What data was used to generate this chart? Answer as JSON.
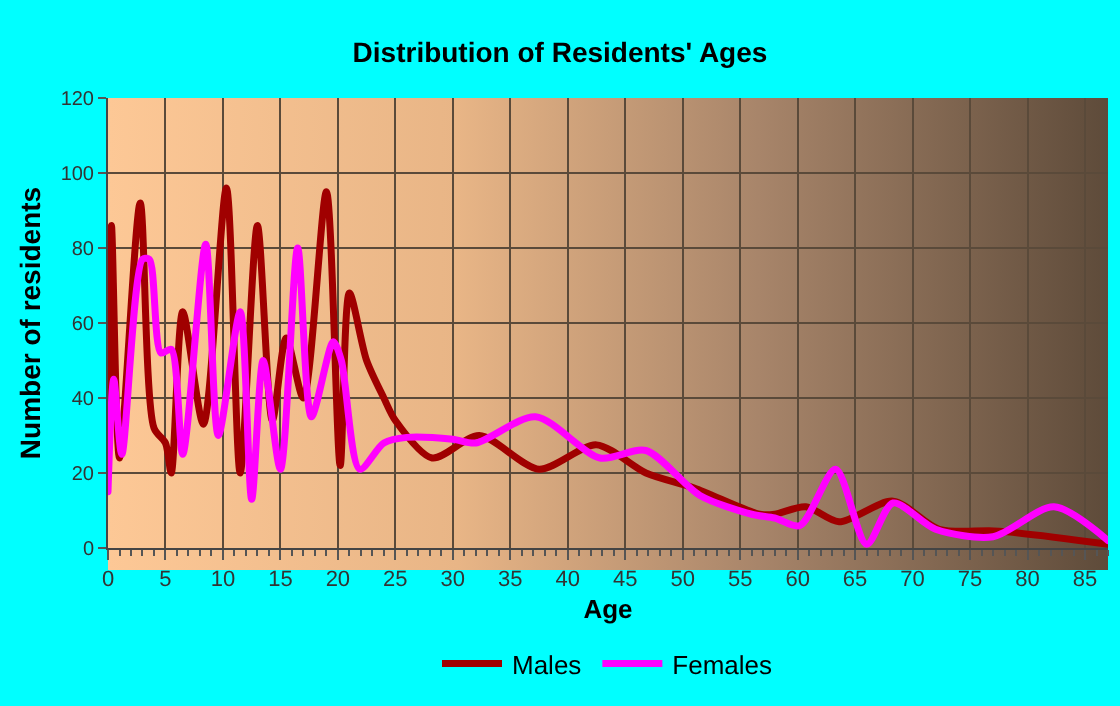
{
  "chart_data": {
    "type": "line",
    "title": "Distribution of Residents' Ages",
    "xlabel": "Age",
    "ylabel": "Number of residents",
    "xlim": [
      0,
      87
    ],
    "xticks": [
      0,
      5,
      10,
      15,
      20,
      25,
      30,
      35,
      40,
      45,
      50,
      55,
      60,
      65,
      70,
      75,
      80,
      85
    ],
    "ylim": [
      0,
      120
    ],
    "yticks": [
      0,
      20,
      40,
      60,
      80,
      100,
      120
    ],
    "grid": true,
    "legend": "bottom",
    "marker": "none",
    "line_style": "solid",
    "series": [
      {
        "name": "Males",
        "color": "#a00000",
        "x": [
          0,
          0.3,
          1,
          2.8,
          4,
          5,
          5.5,
          6.5,
          8.3,
          10.3,
          11.5,
          13,
          14.3,
          15.5,
          17,
          19,
          20.2,
          21,
          22.5,
          24,
          25,
          28.2,
          32.3,
          37.5,
          42.5,
          46.8,
          51,
          56.7,
          58,
          60.7,
          63.6,
          68.3,
          72.3,
          77.5,
          87
        ],
        "values": [
          25,
          86,
          24,
          92,
          32,
          28,
          20,
          63,
          33,
          96,
          20,
          86,
          34,
          56,
          40,
          95,
          22,
          68,
          50,
          40,
          34,
          24,
          30,
          21,
          27.5,
          20,
          16,
          9,
          9,
          11,
          7,
          12.5,
          5,
          4.5,
          1
        ]
      },
      {
        "name": "Females",
        "color": "#ff00ff",
        "x": [
          0,
          0.5,
          1.2,
          3,
          3.6,
          4.6,
          5.5,
          6.5,
          8.5,
          9.6,
          11.5,
          12.5,
          13.5,
          15,
          16.5,
          17.7,
          19.6,
          20.3,
          21.9,
          24,
          26,
          30,
          32,
          37.2,
          42.8,
          46.8,
          51.5,
          56,
          58,
          60.2,
          63.3,
          66,
          68.3,
          72,
          77,
          82.3,
          87
        ],
        "values": [
          15,
          45,
          25,
          77,
          77,
          52,
          53,
          25,
          81,
          30,
          63,
          13,
          50,
          21,
          80,
          35,
          55,
          50,
          21,
          28,
          29.5,
          29,
          28,
          35,
          24,
          26,
          14,
          9,
          8,
          6,
          21,
          1,
          12,
          5,
          3,
          11,
          2
        ]
      }
    ]
  }
}
